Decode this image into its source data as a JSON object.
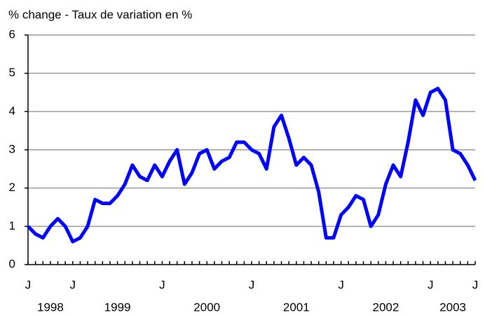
{
  "chart_data": {
    "type": "line",
    "title": "% change - Taux de variation en %",
    "categories": [
      "J",
      null,
      null,
      null,
      null,
      null,
      "J",
      null,
      null,
      null,
      null,
      null,
      null,
      null,
      null,
      null,
      null,
      null,
      "J",
      null,
      null,
      null,
      null,
      null,
      null,
      null,
      null,
      null,
      null,
      null,
      "J",
      null,
      null,
      null,
      null,
      null,
      null,
      null,
      null,
      null,
      null,
      null,
      "J",
      null,
      null,
      null,
      null,
      null,
      null,
      null,
      null,
      null,
      null,
      null,
      "J",
      null,
      null,
      null,
      null,
      null,
      "J"
    ],
    "year_labels": [
      "1998",
      "1999",
      "2000",
      "2001",
      "2002",
      "2003"
    ],
    "series": [
      {
        "name": "% change",
        "color": "#0000ff",
        "values": [
          1.0,
          0.8,
          0.7,
          1.0,
          1.2,
          1.0,
          0.6,
          0.7,
          1.0,
          1.7,
          1.6,
          1.6,
          1.8,
          2.1,
          2.6,
          2.3,
          2.2,
          2.6,
          2.3,
          2.7,
          3.0,
          2.1,
          2.4,
          2.9,
          3.0,
          2.5,
          2.7,
          2.8,
          3.2,
          3.2,
          3.0,
          2.9,
          2.5,
          3.6,
          3.9,
          3.3,
          2.6,
          2.8,
          2.6,
          1.9,
          0.7,
          0.7,
          1.3,
          1.5,
          1.8,
          1.7,
          1.0,
          1.3,
          2.1,
          2.6,
          2.3,
          3.2,
          4.3,
          3.9,
          4.5,
          4.6,
          4.3,
          3.0,
          2.9,
          2.6,
          2.2
        ]
      }
    ],
    "ylim": [
      0,
      6
    ],
    "yticks": [
      0,
      1,
      2,
      3,
      4,
      5,
      6
    ],
    "grid": true
  }
}
